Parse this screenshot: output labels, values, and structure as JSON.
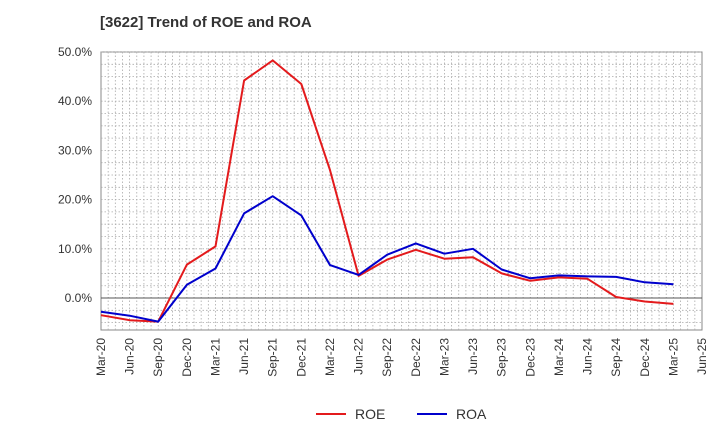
{
  "chart_data": {
    "type": "line",
    "title": "[3622]  Trend of ROE and ROA",
    "categories": [
      "Mar-20",
      "Jun-20",
      "Sep-20",
      "Dec-20",
      "Mar-21",
      "Jun-21",
      "Sep-21",
      "Dec-21",
      "Mar-22",
      "Jun-22",
      "Sep-22",
      "Dec-22",
      "Mar-23",
      "Jun-23",
      "Sep-23",
      "Dec-23",
      "Mar-24",
      "Jun-24",
      "Sep-24",
      "Dec-24",
      "Mar-25",
      "Jun-25"
    ],
    "y_ticks": [
      "0.0%",
      "10.0%",
      "20.0%",
      "30.0%",
      "40.0%",
      "50.0%"
    ],
    "ylim": [
      -6.5,
      50
    ],
    "series": [
      {
        "name": "ROE",
        "color": "#e31a1c",
        "values": [
          -3.5,
          -4.5,
          -4.8,
          6.8,
          10.5,
          44.2,
          48.3,
          43.5,
          26.0,
          4.5,
          7.8,
          9.8,
          8.0,
          8.3,
          5.0,
          3.5,
          4.2,
          3.9,
          0.2,
          -0.7,
          -1.2,
          null
        ]
      },
      {
        "name": "ROA",
        "color": "#0000cc",
        "values": [
          -2.8,
          -3.6,
          -4.8,
          2.7,
          6.0,
          17.2,
          20.7,
          16.8,
          6.7,
          4.7,
          8.8,
          11.1,
          9.0,
          10.0,
          5.8,
          4.0,
          4.6,
          4.4,
          4.3,
          3.2,
          2.8,
          null
        ]
      }
    ],
    "grid": true,
    "legend": "bottom-center"
  }
}
